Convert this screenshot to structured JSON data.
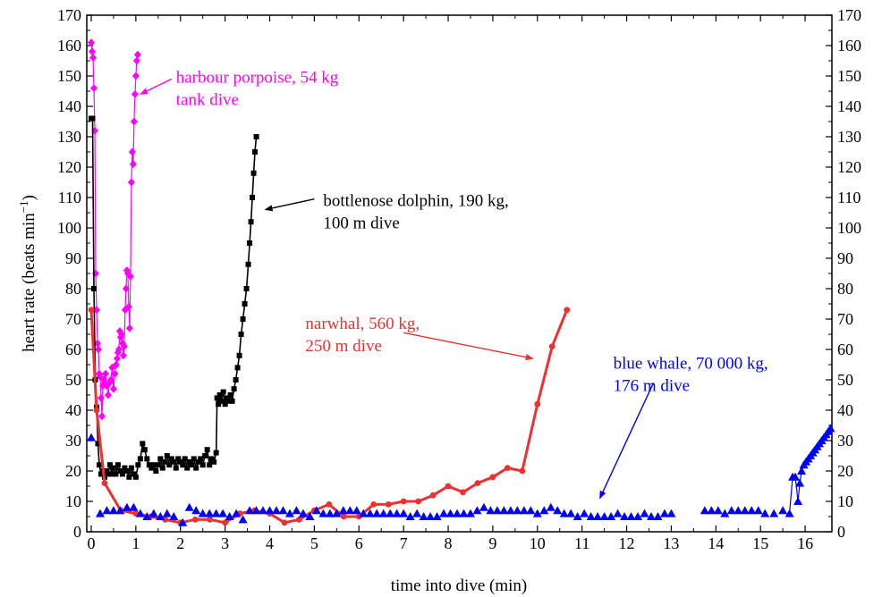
{
  "chart_data": {
    "type": "line",
    "xlabel": "time into dive (min)",
    "ylabel": "heart rate (beats min",
    "ylabel_sup": "−1",
    "ylabel_close": ")",
    "xlim": [
      -0.1,
      16.6
    ],
    "ylim": [
      0,
      170
    ],
    "xticks": [
      0,
      1,
      2,
      3,
      4,
      5,
      6,
      7,
      8,
      9,
      10,
      11,
      12,
      13,
      14,
      15,
      16
    ],
    "yticks": [
      0,
      10,
      20,
      30,
      40,
      50,
      60,
      70,
      80,
      90,
      100,
      110,
      120,
      130,
      140,
      150,
      160,
      170
    ],
    "grid": false,
    "series": [
      {
        "name": "harbour porpoise, 54 kg tank dive",
        "color": "#ff00ff",
        "marker": "diamond",
        "points": [
          [
            0.0,
            161
          ],
          [
            0.02,
            158
          ],
          [
            0.04,
            156
          ],
          [
            0.06,
            146
          ],
          [
            0.08,
            132
          ],
          [
            0.1,
            85
          ],
          [
            0.12,
            73
          ],
          [
            0.14,
            62
          ],
          [
            0.16,
            60
          ],
          [
            0.18,
            52
          ],
          [
            0.2,
            51
          ],
          [
            0.22,
            44
          ],
          [
            0.24,
            38
          ],
          [
            0.26,
            48
          ],
          [
            0.28,
            50
          ],
          [
            0.3,
            49
          ],
          [
            0.32,
            52
          ],
          [
            0.35,
            48
          ],
          [
            0.38,
            45
          ],
          [
            0.41,
            49
          ],
          [
            0.44,
            50
          ],
          [
            0.47,
            54
          ],
          [
            0.5,
            47
          ],
          [
            0.53,
            52
          ],
          [
            0.56,
            55
          ],
          [
            0.58,
            57
          ],
          [
            0.6,
            59
          ],
          [
            0.62,
            60
          ],
          [
            0.64,
            66
          ],
          [
            0.66,
            64
          ],
          [
            0.68,
            65
          ],
          [
            0.7,
            62
          ],
          [
            0.72,
            58
          ],
          [
            0.74,
            61
          ],
          [
            0.76,
            73
          ],
          [
            0.78,
            80
          ],
          [
            0.8,
            86
          ],
          [
            0.82,
            85
          ],
          [
            0.84,
            74
          ],
          [
            0.86,
            67
          ],
          [
            0.88,
            84
          ],
          [
            0.9,
            115
          ],
          [
            0.92,
            125
          ],
          [
            0.94,
            121
          ],
          [
            0.96,
            135
          ],
          [
            0.98,
            144
          ],
          [
            1.0,
            150
          ],
          [
            1.02,
            155
          ],
          [
            1.04,
            157
          ]
        ]
      },
      {
        "name": "bottlenose dolphin, 190 kg, 100 m dive",
        "color": "#000000",
        "marker": "square",
        "points": [
          [
            0.0,
            136
          ],
          [
            0.03,
            136
          ],
          [
            0.06,
            80
          ],
          [
            0.09,
            50
          ],
          [
            0.12,
            41
          ],
          [
            0.15,
            29
          ],
          [
            0.18,
            22
          ],
          [
            0.22,
            19
          ],
          [
            0.26,
            20
          ],
          [
            0.3,
            18
          ],
          [
            0.34,
            20
          ],
          [
            0.38,
            19
          ],
          [
            0.42,
            22
          ],
          [
            0.46,
            19
          ],
          [
            0.5,
            21
          ],
          [
            0.55,
            19
          ],
          [
            0.6,
            22
          ],
          [
            0.65,
            20
          ],
          [
            0.7,
            19
          ],
          [
            0.75,
            21
          ],
          [
            0.8,
            20
          ],
          [
            0.85,
            18
          ],
          [
            0.9,
            21
          ],
          [
            0.95,
            19
          ],
          [
            1.0,
            18
          ],
          [
            1.05,
            22
          ],
          [
            1.1,
            24
          ],
          [
            1.15,
            29
          ],
          [
            1.2,
            27
          ],
          [
            1.25,
            24
          ],
          [
            1.3,
            22
          ],
          [
            1.35,
            21
          ],
          [
            1.4,
            22
          ],
          [
            1.45,
            20
          ],
          [
            1.5,
            22
          ],
          [
            1.55,
            24
          ],
          [
            1.6,
            21
          ],
          [
            1.65,
            23
          ],
          [
            1.7,
            25
          ],
          [
            1.75,
            22
          ],
          [
            1.8,
            24
          ],
          [
            1.85,
            23
          ],
          [
            1.9,
            21
          ],
          [
            1.95,
            24
          ],
          [
            2.0,
            23
          ],
          [
            2.05,
            22
          ],
          [
            2.1,
            24
          ],
          [
            2.15,
            21
          ],
          [
            2.2,
            23
          ],
          [
            2.25,
            22
          ],
          [
            2.3,
            24
          ],
          [
            2.35,
            21
          ],
          [
            2.4,
            23
          ],
          [
            2.45,
            24
          ],
          [
            2.5,
            22
          ],
          [
            2.55,
            25
          ],
          [
            2.6,
            27
          ],
          [
            2.65,
            22
          ],
          [
            2.7,
            24
          ],
          [
            2.75,
            23
          ],
          [
            2.8,
            26
          ],
          [
            2.82,
            44
          ],
          [
            2.85,
            42
          ],
          [
            2.88,
            45
          ],
          [
            2.92,
            43
          ],
          [
            2.96,
            46
          ],
          [
            3.0,
            42
          ],
          [
            3.04,
            44
          ],
          [
            3.08,
            43
          ],
          [
            3.12,
            45
          ],
          [
            3.16,
            43
          ],
          [
            3.2,
            47
          ],
          [
            3.24,
            50
          ],
          [
            3.28,
            54
          ],
          [
            3.32,
            58
          ],
          [
            3.36,
            65
          ],
          [
            3.4,
            70
          ],
          [
            3.44,
            75
          ],
          [
            3.48,
            80
          ],
          [
            3.52,
            88
          ],
          [
            3.55,
            95
          ],
          [
            3.58,
            102
          ],
          [
            3.61,
            110
          ],
          [
            3.64,
            118
          ],
          [
            3.67,
            125
          ],
          [
            3.7,
            130
          ]
        ]
      },
      {
        "name": "narwhal, 560 kg, 250 m dive",
        "color": "#ee3030",
        "marker": "circle",
        "points": [
          [
            0.0,
            73
          ],
          [
            0.12,
            40
          ],
          [
            0.3,
            16
          ],
          [
            0.66,
            7
          ],
          [
            1.0,
            6
          ],
          [
            1.33,
            5
          ],
          [
            1.66,
            4
          ],
          [
            2.0,
            3
          ],
          [
            2.33,
            4
          ],
          [
            2.66,
            4
          ],
          [
            3.0,
            3
          ],
          [
            3.33,
            6
          ],
          [
            3.66,
            7
          ],
          [
            4.0,
            6
          ],
          [
            4.33,
            3
          ],
          [
            4.66,
            4
          ],
          [
            5.0,
            7
          ],
          [
            5.33,
            9
          ],
          [
            5.66,
            5
          ],
          [
            6.0,
            5
          ],
          [
            6.33,
            9
          ],
          [
            6.66,
            9
          ],
          [
            7.0,
            10
          ],
          [
            7.33,
            10
          ],
          [
            7.66,
            12
          ],
          [
            8.0,
            15
          ],
          [
            8.33,
            13
          ],
          [
            8.66,
            16
          ],
          [
            9.0,
            18
          ],
          [
            9.33,
            21
          ],
          [
            9.66,
            20
          ],
          [
            10.0,
            42
          ],
          [
            10.33,
            61
          ],
          [
            10.66,
            73
          ]
        ]
      },
      {
        "name": "blue whale, 70 000 kg, 176 m dive",
        "color": "#0000ff",
        "marker": "triangle",
        "line": false,
        "points": [
          [
            0.0,
            31
          ],
          [
            0.2,
            6
          ],
          [
            0.35,
            7
          ],
          [
            0.5,
            7
          ],
          [
            0.65,
            7
          ],
          [
            0.8,
            8
          ],
          [
            0.95,
            8
          ],
          [
            1.1,
            6
          ],
          [
            1.25,
            5
          ],
          [
            1.4,
            6
          ],
          [
            1.55,
            5
          ],
          [
            1.7,
            6
          ],
          [
            1.85,
            5
          ],
          [
            2.05,
            3
          ],
          [
            2.2,
            8
          ],
          [
            2.35,
            7
          ],
          [
            2.5,
            6
          ],
          [
            2.65,
            6
          ],
          [
            2.8,
            6
          ],
          [
            2.95,
            6
          ],
          [
            3.1,
            5
          ],
          [
            3.25,
            6
          ],
          [
            3.4,
            4
          ],
          [
            3.55,
            7
          ],
          [
            3.7,
            7
          ],
          [
            3.85,
            7
          ],
          [
            4.0,
            7
          ],
          [
            4.15,
            7
          ],
          [
            4.3,
            7
          ],
          [
            4.45,
            6
          ],
          [
            4.6,
            7
          ],
          [
            4.75,
            6
          ],
          [
            4.9,
            5
          ],
          [
            5.05,
            7
          ],
          [
            5.2,
            6
          ],
          [
            5.35,
            6
          ],
          [
            5.5,
            6
          ],
          [
            5.65,
            7
          ],
          [
            5.8,
            7
          ],
          [
            5.95,
            7
          ],
          [
            6.1,
            6
          ],
          [
            6.25,
            6
          ],
          [
            6.4,
            6
          ],
          [
            6.55,
            6
          ],
          [
            6.7,
            6
          ],
          [
            6.85,
            6
          ],
          [
            7.0,
            6
          ],
          [
            7.15,
            5
          ],
          [
            7.3,
            6
          ],
          [
            7.45,
            5
          ],
          [
            7.6,
            5
          ],
          [
            7.75,
            5
          ],
          [
            7.9,
            6
          ],
          [
            8.05,
            6
          ],
          [
            8.2,
            6
          ],
          [
            8.35,
            6
          ],
          [
            8.5,
            6
          ],
          [
            8.65,
            7
          ],
          [
            8.8,
            8
          ],
          [
            8.95,
            7
          ],
          [
            9.1,
            7
          ],
          [
            9.25,
            7
          ],
          [
            9.4,
            7
          ],
          [
            9.55,
            7
          ],
          [
            9.7,
            7
          ],
          [
            9.85,
            7
          ],
          [
            10.0,
            6
          ],
          [
            10.15,
            7
          ],
          [
            10.3,
            8
          ],
          [
            10.45,
            7
          ],
          [
            10.6,
            6
          ],
          [
            10.75,
            6
          ],
          [
            10.9,
            5
          ],
          [
            11.05,
            6
          ],
          [
            11.2,
            5
          ],
          [
            11.35,
            5
          ],
          [
            11.5,
            5
          ],
          [
            11.65,
            5
          ],
          [
            11.8,
            6
          ],
          [
            11.95,
            5
          ],
          [
            12.1,
            5
          ],
          [
            12.25,
            5
          ],
          [
            12.4,
            6
          ],
          [
            12.55,
            5
          ],
          [
            12.7,
            5
          ],
          [
            12.85,
            6
          ],
          [
            13.0,
            6
          ],
          [
            13.75,
            7
          ],
          [
            13.9,
            7
          ],
          [
            14.05,
            7
          ],
          [
            14.2,
            6
          ],
          [
            14.35,
            7
          ],
          [
            14.5,
            7
          ],
          [
            14.65,
            7
          ],
          [
            14.8,
            7
          ],
          [
            14.95,
            7
          ],
          [
            15.1,
            6
          ],
          [
            15.3,
            6
          ],
          [
            15.5,
            7
          ],
          [
            15.65,
            6
          ],
          [
            15.72,
            18
          ],
          [
            15.78,
            18
          ],
          [
            15.84,
            10
          ],
          [
            15.88,
            16
          ],
          [
            15.92,
            20
          ],
          [
            15.97,
            22
          ],
          [
            16.02,
            23
          ],
          [
            16.07,
            24
          ],
          [
            16.12,
            25
          ],
          [
            16.17,
            26
          ],
          [
            16.22,
            27
          ],
          [
            16.27,
            28
          ],
          [
            16.32,
            29
          ],
          [
            16.37,
            30
          ],
          [
            16.42,
            31
          ],
          [
            16.47,
            32
          ],
          [
            16.52,
            33
          ],
          [
            16.57,
            34
          ]
        ]
      }
    ],
    "annotations": [
      {
        "lines": [
          "harbour porpoise, 54 kg",
          "tank dive"
        ],
        "color": "#ff00ff",
        "x": 1.9,
        "y": 149.5,
        "arrow_from": [
          1.8,
          149
        ],
        "arrow_to": [
          1.1,
          144
        ]
      },
      {
        "lines": [
          "bottlenose dolphin, 190 kg,",
          "100 m dive"
        ],
        "color": "#000000",
        "x": 5.2,
        "y": 109,
        "arrow_from": [
          5.0,
          109.5
        ],
        "arrow_to": [
          3.9,
          106
        ]
      },
      {
        "lines": [
          "narwhal, 560 kg,",
          "250 m dive"
        ],
        "color": "#ee3030",
        "x": 4.8,
        "y": 68.5,
        "arrow_from": [
          7.0,
          65.5
        ],
        "arrow_to": [
          9.9,
          57
        ]
      },
      {
        "lines": [
          "blue whale, 70 000 kg,",
          "176 m dive"
        ],
        "color": "#0000ff",
        "x": 11.7,
        "y": 55.5,
        "arrow_from": [
          12.6,
          49
        ],
        "arrow_to": [
          11.4,
          11
        ]
      }
    ]
  }
}
